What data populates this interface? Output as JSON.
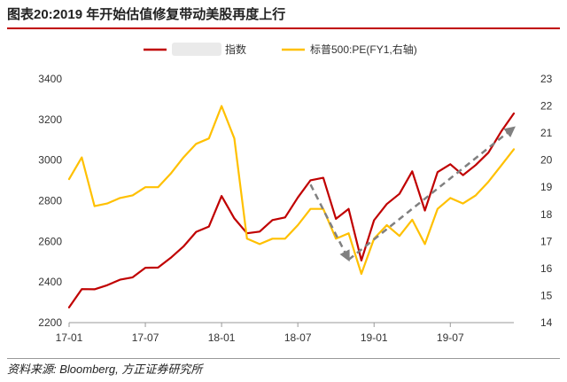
{
  "title": "图表20:2019 年开始估值修复带动美股再度上行",
  "source": "资料来源: Bloomberg, 方正证券研究所",
  "colors": {
    "index": "#c00000",
    "pe": "#ffc000",
    "arrow": "#808080"
  },
  "chart_data": {
    "type": "line",
    "x": [
      "2017-01",
      "2017-02",
      "2017-03",
      "2017-04",
      "2017-05",
      "2017-06",
      "2017-07",
      "2017-08",
      "2017-09",
      "2017-10",
      "2017-11",
      "2017-12",
      "2018-01",
      "2018-02",
      "2018-03",
      "2018-04",
      "2018-05",
      "2018-06",
      "2018-07",
      "2018-08",
      "2018-09",
      "2018-10",
      "2018-11",
      "2018-12",
      "2019-01",
      "2019-02",
      "2019-03",
      "2019-04",
      "2019-05",
      "2019-06",
      "2019-07",
      "2019-08",
      "2019-09",
      "2019-10",
      "2019-11",
      "2019-12"
    ],
    "xticks": [
      "17-01",
      "17-07",
      "18-01",
      "18-07",
      "19-01",
      "19-07"
    ],
    "series": [
      {
        "name": "指数",
        "axis": "left",
        "color": "#c00000",
        "values": [
          2275,
          2365,
          2364,
          2384,
          2411,
          2423,
          2470,
          2471,
          2519,
          2575,
          2647,
          2673,
          2823,
          2713,
          2640,
          2648,
          2705,
          2718,
          2816,
          2901,
          2913,
          2711,
          2760,
          2506,
          2704,
          2784,
          2834,
          2945,
          2752,
          2941,
          2980,
          2926,
          2976,
          3037,
          3141,
          3230
        ]
      },
      {
        "name": "标普500:PE(FY1,右轴)",
        "axis": "right",
        "color": "#ffc000",
        "values": [
          19.3,
          20.1,
          18.3,
          18.4,
          18.6,
          18.7,
          19.0,
          19.0,
          19.5,
          20.1,
          20.6,
          20.8,
          22.0,
          20.8,
          17.1,
          16.9,
          17.1,
          17.1,
          17.6,
          18.2,
          18.2,
          17.1,
          17.3,
          15.8,
          17.1,
          17.6,
          17.2,
          17.8,
          16.9,
          18.2,
          18.6,
          18.4,
          18.7,
          19.2,
          19.8,
          20.4
        ]
      }
    ],
    "trend_arrows": [
      {
        "from": [
          "2018-08",
          2880
        ],
        "to": [
          "2018-11",
          2510
        ]
      },
      {
        "from": [
          "2018-11",
          2510
        ],
        "to": [
          "2019-12",
          3160
        ]
      }
    ],
    "ylim_left": [
      2200,
      3400
    ],
    "yticks_left": [
      2200,
      2400,
      2600,
      2800,
      3000,
      3200,
      3400
    ],
    "ylim_right": [
      14,
      23
    ],
    "yticks_right": [
      14,
      15,
      16,
      17,
      18,
      19,
      20,
      21,
      22,
      23
    ],
    "legend_position": "top-center",
    "grid": false
  }
}
